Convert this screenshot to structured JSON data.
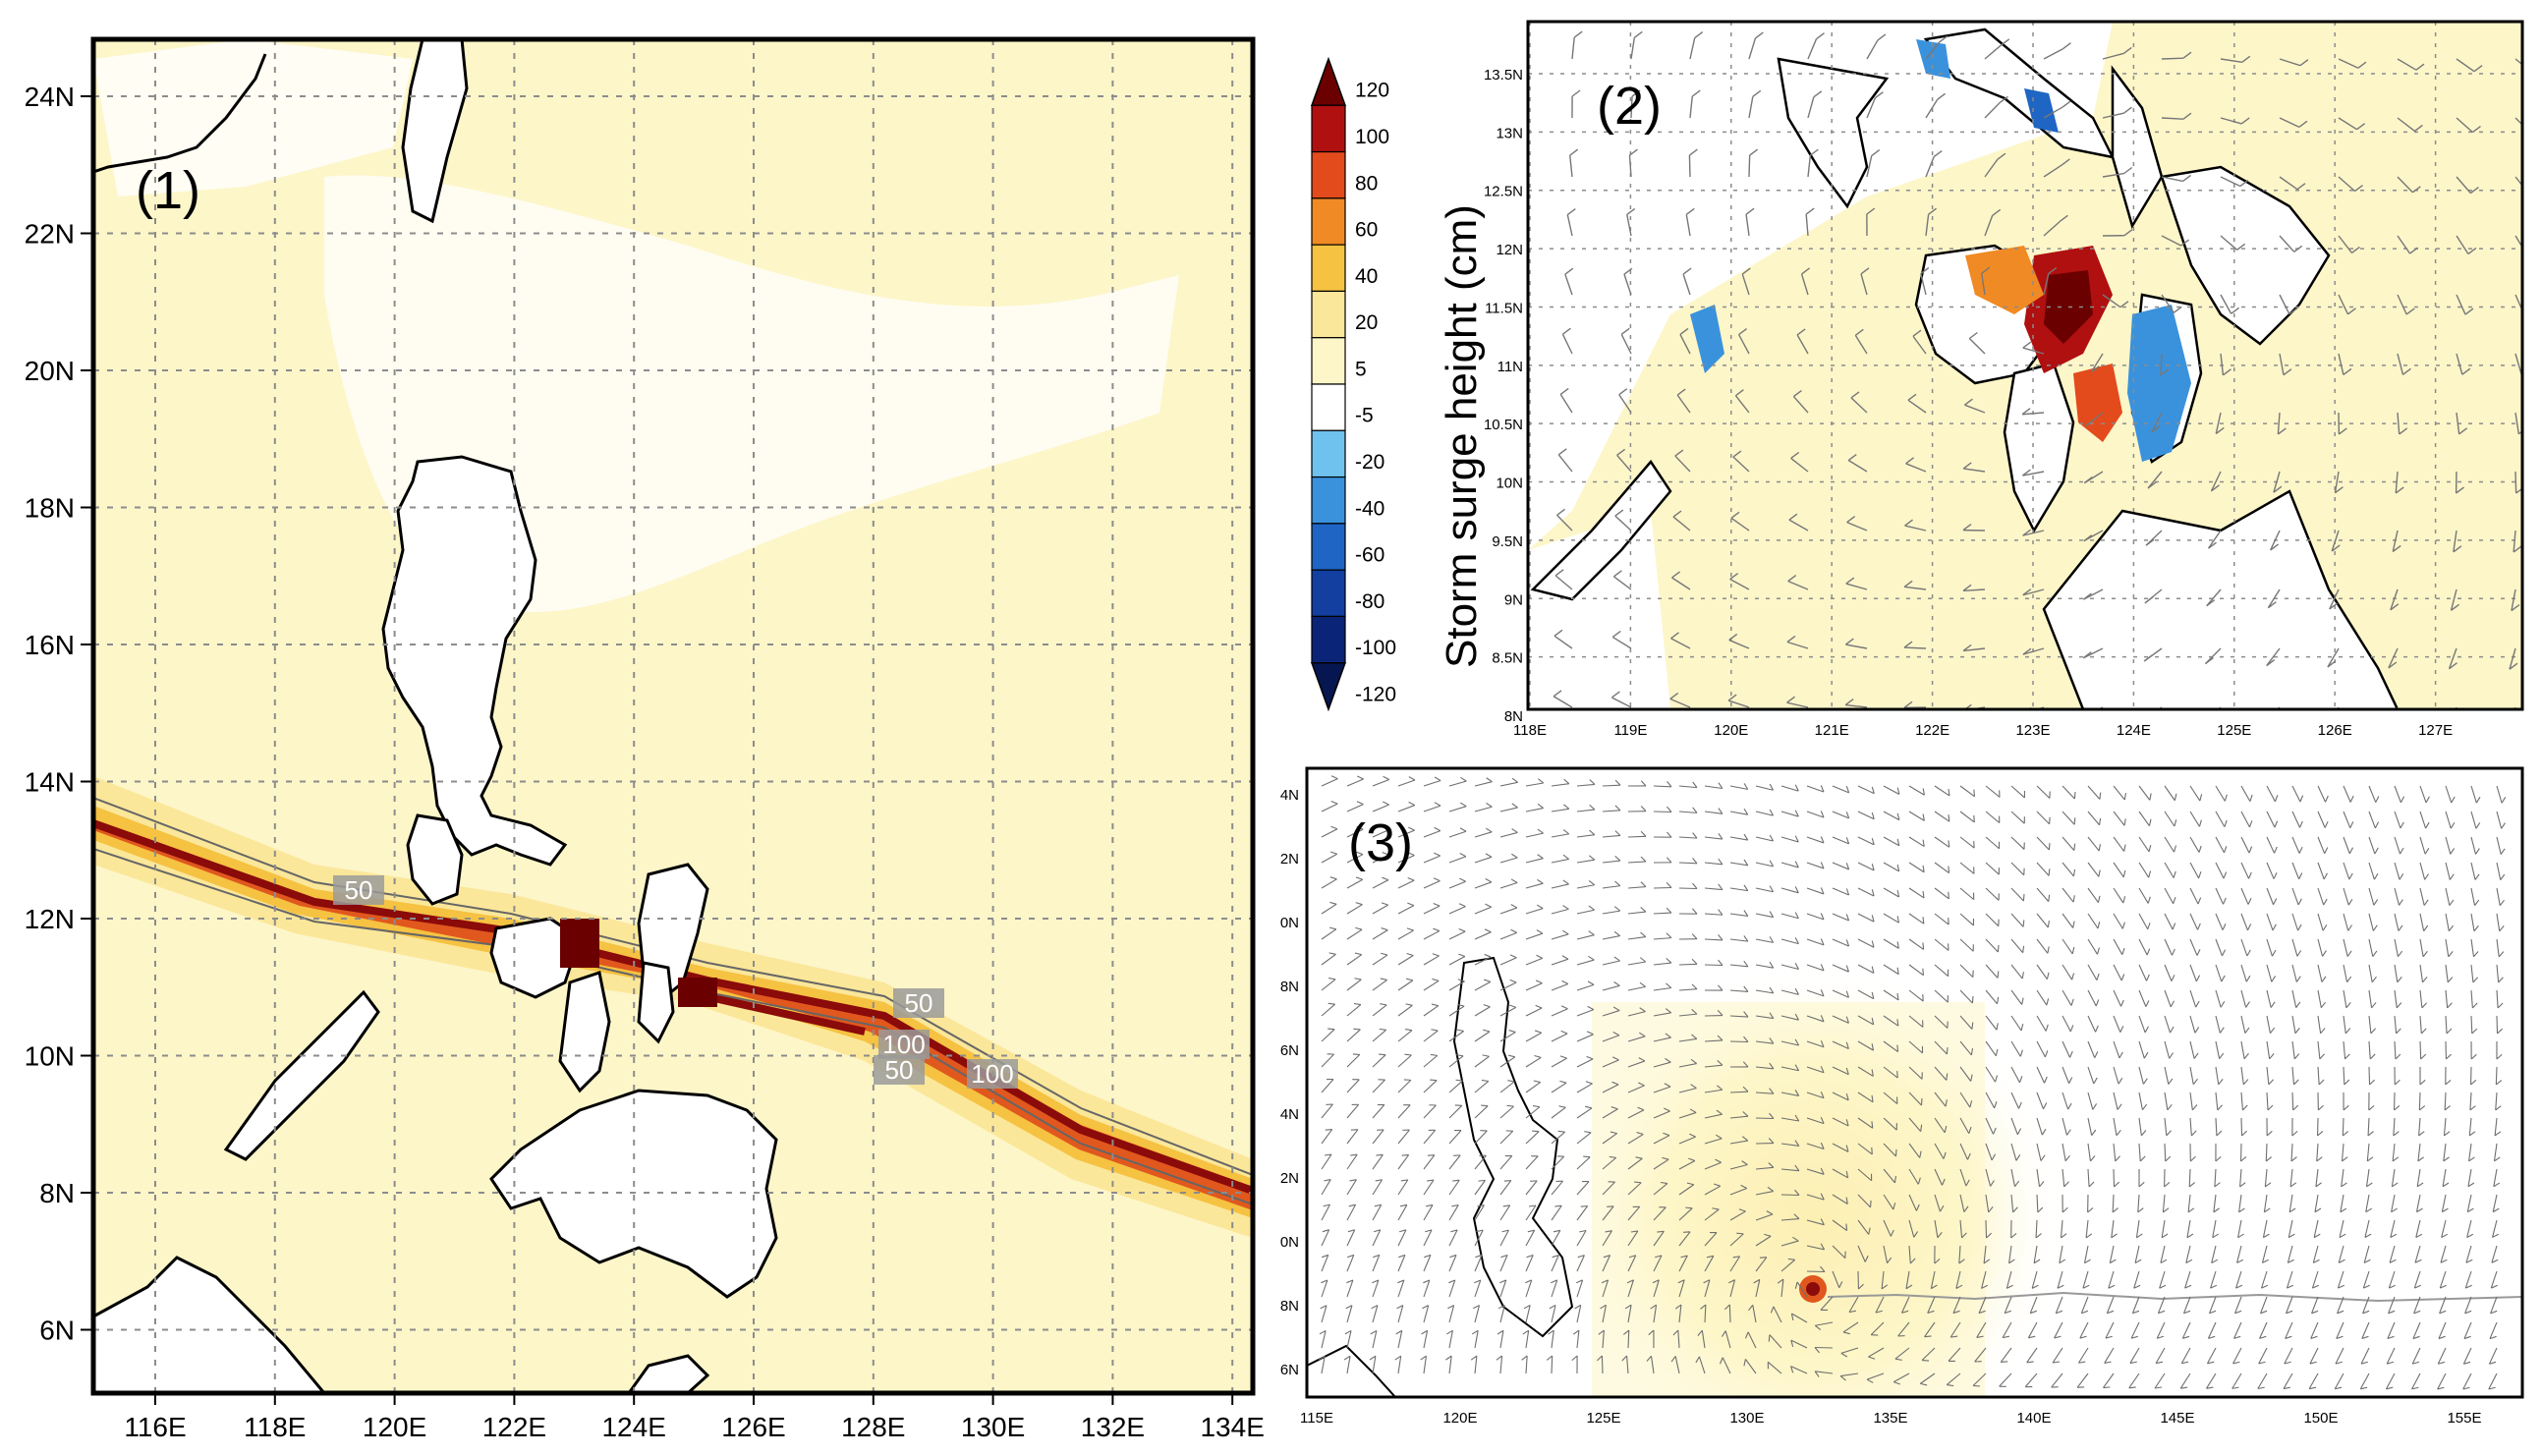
{
  "colorbar": {
    "levels": [
      "120",
      "100",
      "80",
      "60",
      "40",
      "20",
      "5",
      "-5",
      "-20",
      "-40",
      "-60",
      "-80",
      "-100",
      "-120"
    ],
    "colors": [
      "#6b0000",
      "#b01010",
      "#e34a1c",
      "#f08a24",
      "#f5c242",
      "#fbe79a",
      "#fdf6c9",
      "#ffffff",
      "#6fc2ee",
      "#3a92dc",
      "#1f65c4",
      "#123fa0",
      "#0a2577",
      "#061650"
    ],
    "label": "Storm surge height (cm)"
  },
  "panels": {
    "p1": {
      "label": "(1)",
      "lat_ticks": [
        "24N",
        "22N",
        "20N",
        "18N",
        "16N",
        "14N",
        "12N",
        "10N",
        "8N",
        "6N"
      ],
      "lon_ticks": [
        "116E",
        "118E",
        "120E",
        "122E",
        "124E",
        "126E",
        "128E",
        "130E",
        "132E",
        "134E"
      ],
      "contour_labels": [
        "50",
        "50",
        "100",
        "50",
        "100"
      ]
    },
    "p2": {
      "label": "(2)",
      "lat_ticks": [
        "13.5N",
        "13N",
        "12.5N",
        "12N",
        "11.5N",
        "11N",
        "10.5N",
        "10N",
        "9.5N",
        "9N",
        "8.5N",
        "8N"
      ],
      "lon_ticks": [
        "118E",
        "119E",
        "120E",
        "121E",
        "122E",
        "123E",
        "124E",
        "125E",
        "126E",
        "127E"
      ]
    },
    "p3": {
      "label": "(3)",
      "lat_ticks": [
        "4N",
        "2N",
        "0N",
        "8N",
        "6N",
        "4N",
        "2N",
        "0N",
        "8N",
        "6N"
      ],
      "lon_ticks": [
        "115E",
        "120E",
        "125E",
        "130E",
        "135E",
        "140E",
        "145E",
        "150E",
        "155E"
      ]
    }
  },
  "colors": {
    "land": "#ffffff",
    "sea_low": "#fdf6c9",
    "sea_mid": "#fbe79a",
    "track_core": "#8b0a0a",
    "track_outer": "#e0581e",
    "grid": "#8c8c8c"
  }
}
